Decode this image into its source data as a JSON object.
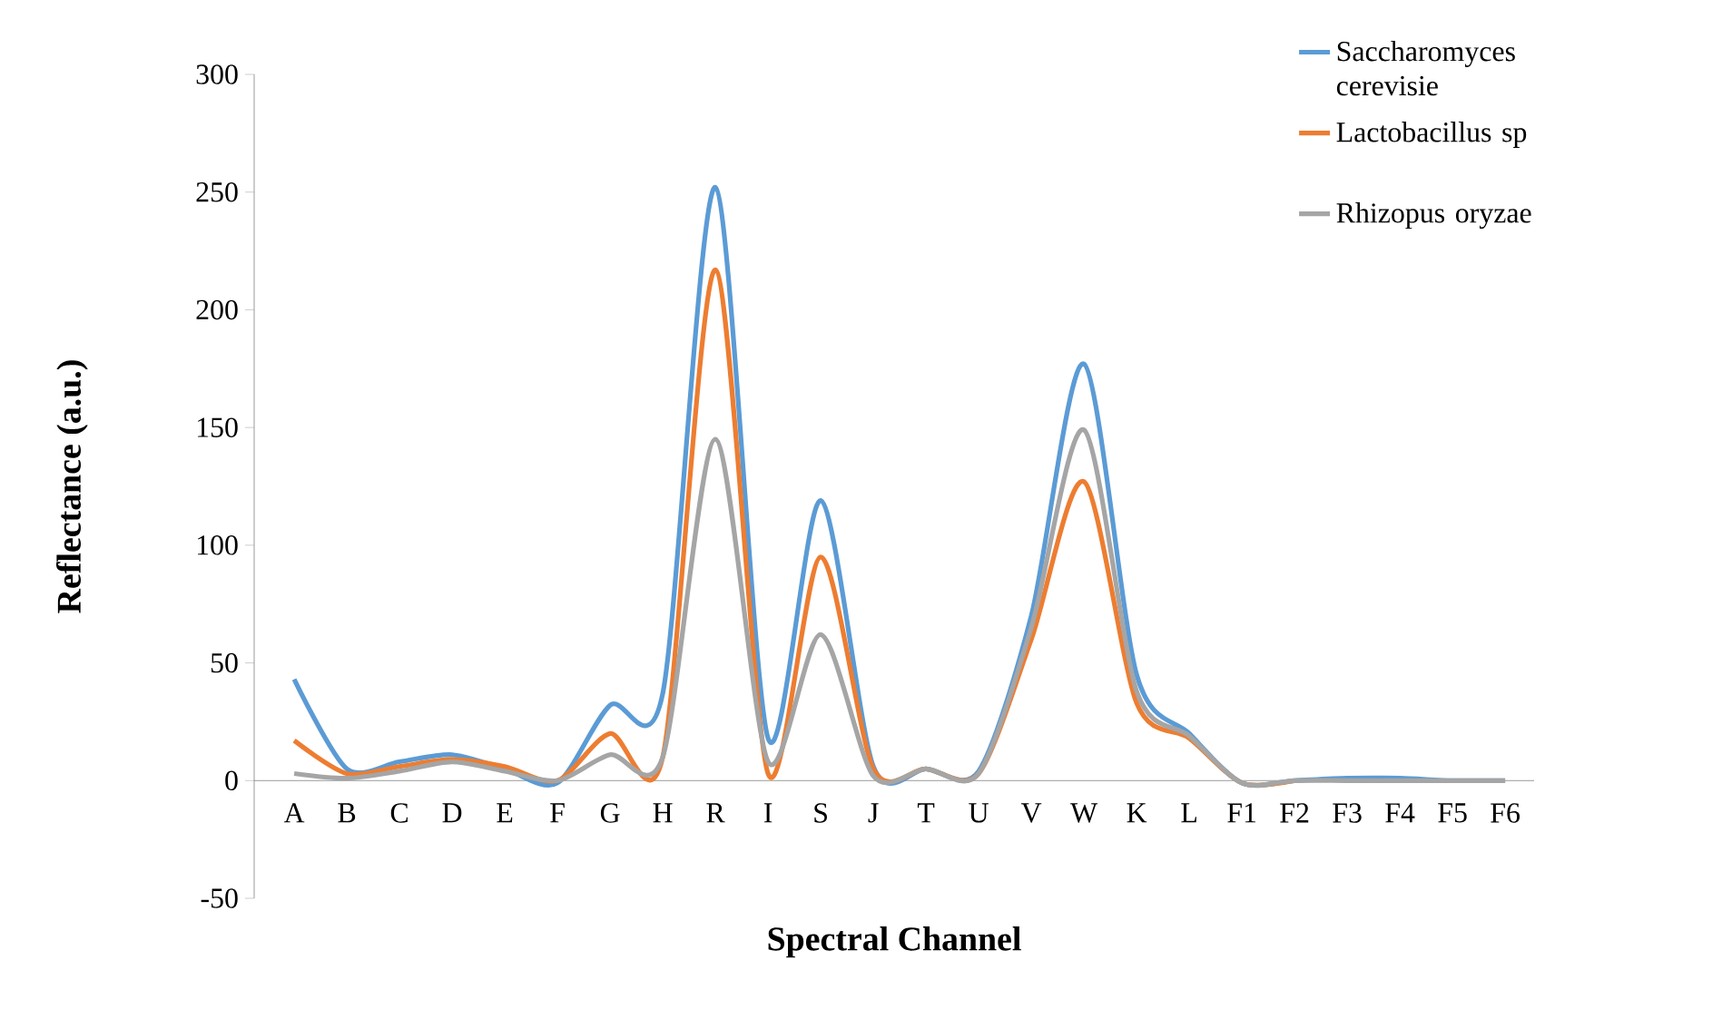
{
  "chart_data": {
    "type": "line",
    "xlabel": "Spectral Channel",
    "ylabel": "Reflectance (a.u.)",
    "categories": [
      "A",
      "B",
      "C",
      "D",
      "E",
      "F",
      "G",
      "H",
      "R",
      "I",
      "S",
      "J",
      "T",
      "U",
      "V",
      "W",
      "K",
      "L",
      "F1",
      "F2",
      "F3",
      "F4",
      "F5",
      "F6"
    ],
    "series": [
      {
        "name": "Saccharomyces cerevisie",
        "color": "#5b9bd5",
        "values": [
          43,
          5,
          8,
          11,
          5,
          -1,
          32,
          37,
          252,
          18,
          119,
          6,
          5,
          4,
          70,
          177,
          45,
          20,
          -1,
          0,
          1,
          1,
          0,
          0
        ]
      },
      {
        "name": "Lactobacillus sp",
        "color": "#ed7d31",
        "values": [
          17,
          3,
          6,
          9,
          6,
          0,
          20,
          10,
          217,
          3,
          95,
          5,
          5,
          3,
          60,
          127,
          33,
          18,
          -1,
          0,
          null,
          null,
          null,
          null
        ]
      },
      {
        "name": "Rhizopus oryzae",
        "color": "#a5a5a5",
        "values": [
          3,
          1,
          4,
          8,
          4,
          0,
          11,
          10,
          145,
          8,
          62,
          2,
          5,
          3,
          65,
          149,
          38,
          19,
          -1,
          0,
          0,
          0,
          0,
          0
        ]
      }
    ],
    "ylim": [
      -50,
      300
    ],
    "yticks": [
      -50,
      0,
      50,
      100,
      150,
      200,
      250,
      300
    ],
    "legend": "top right",
    "marker": "none",
    "line_style": "solid",
    "grid": false
  }
}
